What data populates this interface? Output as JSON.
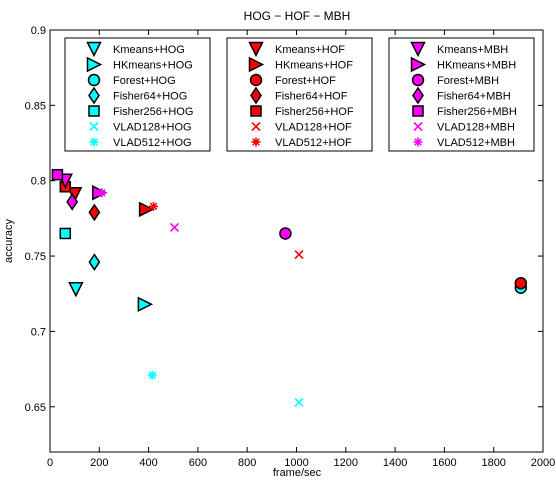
{
  "chart_data": {
    "type": "scatter",
    "title": "HOG − HOF − MBH",
    "xlabel": "frame/sec",
    "ylabel": "accuracy",
    "xlim": [
      0,
      2000
    ],
    "ylim": [
      0.62,
      0.9
    ],
    "x_ticks": [
      "0",
      "200",
      "400",
      "600",
      "800",
      "1000",
      "1200",
      "1400",
      "1600",
      "1800",
      "2000"
    ],
    "y_ticks": [
      "0.65",
      "0.7",
      "0.75",
      "0.8",
      "0.85",
      "0.9"
    ],
    "grid": false,
    "legend_placement": "top",
    "descriptor_colors": {
      "HOG": "#00ffff",
      "HOF": "#ff0000",
      "MBH": "#ff00ff"
    },
    "series": [
      {
        "name": "Kmeans+HOG",
        "marker": "triangle-down",
        "color": "#00ffff",
        "x": 105,
        "y": 0.728
      },
      {
        "name": "HKmeans+HOG",
        "marker": "triangle-right",
        "color": "#00ffff",
        "x": 385,
        "y": 0.718
      },
      {
        "name": "Forest+HOG",
        "marker": "circle",
        "color": "#00ffff",
        "x": 1910,
        "y": 0.729
      },
      {
        "name": "Fisher64+HOG",
        "marker": "diamond",
        "color": "#00ffff",
        "x": 180,
        "y": 0.746
      },
      {
        "name": "Fisher256+HOG",
        "marker": "square",
        "color": "#00ffff",
        "x": 62,
        "y": 0.765
      },
      {
        "name": "VLAD128+HOG",
        "marker": "x",
        "color": "#00ffff",
        "x": 1010,
        "y": 0.653
      },
      {
        "name": "VLAD512+HOG",
        "marker": "asterisk",
        "color": "#00ffff",
        "x": 415,
        "y": 0.671
      },
      {
        "name": "Kmeans+HOF",
        "marker": "triangle-down",
        "color": "#ff0000",
        "x": 100,
        "y": 0.791
      },
      {
        "name": "HKmeans+HOF",
        "marker": "triangle-right",
        "color": "#ff0000",
        "x": 390,
        "y": 0.781
      },
      {
        "name": "Forest+HOF",
        "marker": "circle",
        "color": "#ff0000",
        "x": 1910,
        "y": 0.732
      },
      {
        "name": "Fisher64+HOF",
        "marker": "diamond",
        "color": "#ff0000",
        "x": 180,
        "y": 0.779
      },
      {
        "name": "Fisher256+HOF",
        "marker": "square",
        "color": "#ff0000",
        "x": 62,
        "y": 0.796
      },
      {
        "name": "VLAD128+HOF",
        "marker": "x",
        "color": "#ff0000",
        "x": 1010,
        "y": 0.751
      },
      {
        "name": "VLAD512+HOF",
        "marker": "asterisk",
        "color": "#ff0000",
        "x": 420,
        "y": 0.783
      },
      {
        "name": "Kmeans+MBH",
        "marker": "triangle-down",
        "color": "#ff00ff",
        "x": 62,
        "y": 0.8
      },
      {
        "name": "HKmeans+MBH",
        "marker": "triangle-right",
        "color": "#ff00ff",
        "x": 200,
        "y": 0.792
      },
      {
        "name": "Forest+MBH",
        "marker": "circle",
        "color": "#ff00ff",
        "x": 955,
        "y": 0.765
      },
      {
        "name": "Fisher64+MBH",
        "marker": "diamond",
        "color": "#ff00ff",
        "x": 90,
        "y": 0.786
      },
      {
        "name": "Fisher256+MBH",
        "marker": "square",
        "color": "#ff00ff",
        "x": 30,
        "y": 0.804
      },
      {
        "name": "VLAD128+MBH",
        "marker": "x",
        "color": "#ff00ff",
        "x": 505,
        "y": 0.769
      },
      {
        "name": "VLAD512+MBH",
        "marker": "asterisk",
        "color": "#ff00ff",
        "x": 210,
        "y": 0.792
      }
    ],
    "legend_groups": [
      [
        "Kmeans+HOG",
        "HKmeans+HOG",
        "Forest+HOG",
        "Fisher64+HOG",
        "Fisher256+HOG",
        "VLAD128+HOG",
        "VLAD512+HOG"
      ],
      [
        "Kmeans+HOF",
        "HKmeans+HOF",
        "Forest+HOF",
        "Fisher64+HOF",
        "Fisher256+HOF",
        "VLAD128+HOF",
        "VLAD512+HOF"
      ],
      [
        "Kmeans+MBH",
        "HKmeans+MBH",
        "Forest+MBH",
        "Fisher64+MBH",
        "Fisher256+MBH",
        "VLAD128+MBH",
        "VLAD512+MBH"
      ]
    ]
  }
}
